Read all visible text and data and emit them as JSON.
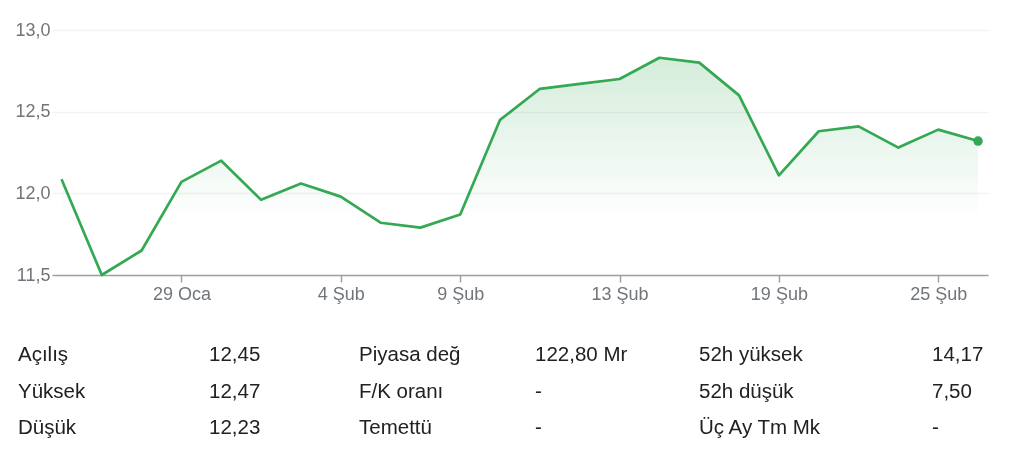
{
  "chart_data": {
    "type": "area",
    "categories": [
      null,
      null,
      null,
      "29 Oca",
      null,
      null,
      null,
      "4 Şub",
      null,
      null,
      "9 Şub",
      null,
      null,
      null,
      "13 Şub",
      null,
      null,
      null,
      "19 Şub",
      null,
      null,
      null,
      "25 Şub",
      null
    ],
    "series": [
      {
        "color": "#34a853",
        "values": [
          12.08,
          11.5,
          11.65,
          12.07,
          12.2,
          11.96,
          12.06,
          11.98,
          11.82,
          11.79,
          11.87,
          12.45,
          12.64,
          12.67,
          12.7,
          12.83,
          12.8,
          12.6,
          12.11,
          12.38,
          12.41,
          12.28,
          12.39,
          12.32
        ]
      },
      {
        "type": "scatter",
        "color": "#34a853",
        "values": [
          null,
          null,
          null,
          null,
          null,
          null,
          null,
          null,
          null,
          null,
          null,
          null,
          null,
          null,
          null,
          null,
          null,
          null,
          null,
          null,
          null,
          null,
          null,
          12.32
        ]
      }
    ],
    "ylim": [
      11.5,
      13.0
    ],
    "yticks": [
      {
        "value": 11.5,
        "label": "11,5"
      },
      {
        "value": 12.0,
        "label": "12,0"
      },
      {
        "value": 12.5,
        "label": "12,5"
      },
      {
        "value": 13.0,
        "label": "13,0"
      }
    ],
    "grid": "y",
    "line_style": "solid",
    "annotations": [
      "Açılış",
      "12,45",
      "Piyasa değ",
      "122,80 Mr",
      "52h yüksek",
      "14,17",
      "Yüksek",
      "12,47",
      "F/K oranı",
      "-",
      "52h düşük",
      "7,50",
      "Düşük",
      "12,23",
      "Temettü",
      "-",
      "Üç Ay Tm Mk",
      "-"
    ]
  }
}
